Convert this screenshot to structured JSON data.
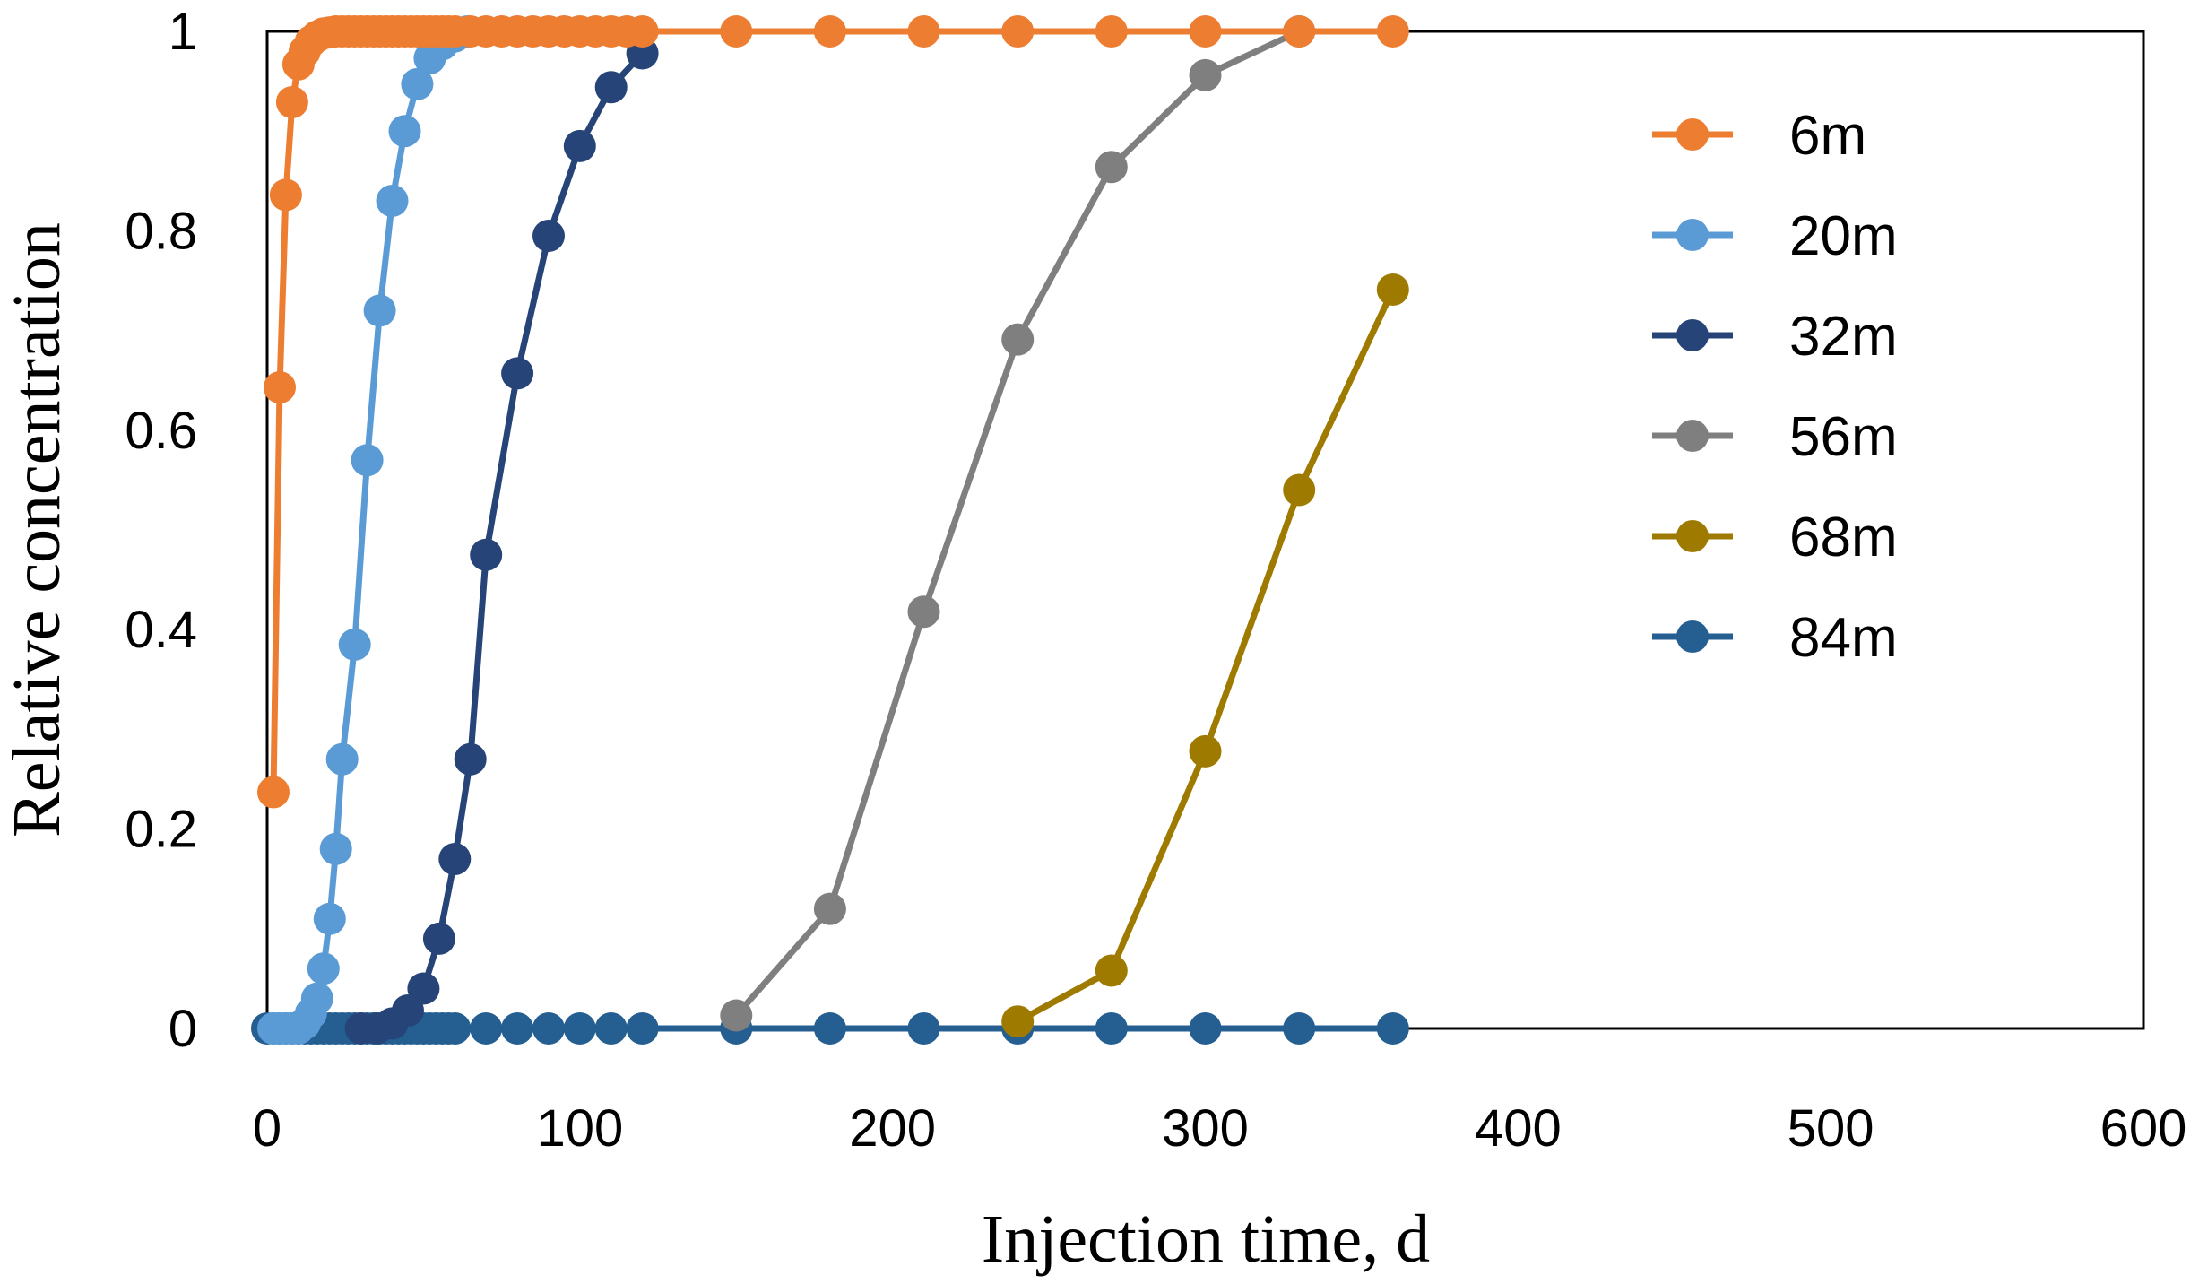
{
  "chart_data": {
    "type": "line",
    "title": "",
    "xlabel": "Injection time, d",
    "ylabel": "Relative concentration",
    "xlim": [
      0,
      600
    ],
    "ylim": [
      0,
      1
    ],
    "x_ticks": [
      0,
      100,
      200,
      300,
      400,
      500,
      600
    ],
    "y_ticks": [
      0,
      0.2,
      0.4,
      0.6,
      0.8,
      1
    ],
    "x_tick_labels": [
      "0",
      "100",
      "200",
      "300",
      "400",
      "500",
      "600"
    ],
    "y_tick_labels": [
      "0",
      "0.2",
      "0.4",
      "0.6",
      "0.8",
      "1"
    ],
    "grid": false,
    "legend_position": "right",
    "series": [
      {
        "name": "6m",
        "color": "#ED7D31",
        "x": [
          2,
          4,
          6,
          8,
          10,
          12,
          14,
          16,
          18,
          20,
          22,
          24,
          26,
          28,
          30,
          32,
          34,
          36,
          38,
          40,
          42,
          44,
          46,
          48,
          50,
          52,
          54,
          56,
          58,
          60,
          65,
          70,
          75,
          80,
          85,
          90,
          95,
          100,
          105,
          110,
          115,
          120,
          150,
          180,
          210,
          240,
          270,
          300,
          330,
          360
        ],
        "y": [
          0.237,
          0.643,
          0.836,
          0.929,
          0.967,
          0.98,
          0.99,
          0.995,
          0.998,
          0.999,
          1,
          1,
          1,
          1,
          1,
          1,
          1,
          1,
          1,
          1,
          1,
          1,
          1,
          1,
          1,
          1,
          1,
          1,
          1,
          1,
          1,
          1,
          1,
          1,
          1,
          1,
          1,
          1,
          1,
          1,
          1,
          1,
          1,
          1,
          1,
          1,
          1,
          1,
          1,
          1
        ]
      },
      {
        "name": "20m",
        "color": "#5B9BD5",
        "x": [
          2,
          4,
          6,
          8,
          10,
          12,
          14,
          16,
          18,
          20,
          22,
          24,
          28,
          32,
          36,
          40,
          44,
          48,
          52,
          56,
          60,
          64
        ],
        "y": [
          0,
          0,
          0,
          0,
          0,
          0.005,
          0.015,
          0.03,
          0.06,
          0.11,
          0.18,
          0.27,
          0.385,
          0.57,
          0.72,
          0.83,
          0.9,
          0.947,
          0.973,
          0.987,
          0.995,
          1
        ]
      },
      {
        "name": "32m",
        "color": "#264478",
        "x": [
          30,
          35,
          40,
          45,
          50,
          55,
          60,
          65,
          70,
          80,
          90,
          100,
          110,
          120
        ],
        "y": [
          0,
          0,
          0.005,
          0.018,
          0.04,
          0.09,
          0.17,
          0.27,
          0.475,
          0.657,
          0.795,
          0.885,
          0.944,
          0.978
        ]
      },
      {
        "name": "56m",
        "color": "#7F7F7F",
        "x": [
          150,
          180,
          210,
          240,
          270,
          300,
          330
        ],
        "y": [
          0.013,
          0.12,
          0.418,
          0.691,
          0.864,
          0.956,
          1
        ]
      },
      {
        "name": "68m",
        "color": "#9E7B00",
        "x": [
          240,
          270,
          300,
          330,
          360
        ],
        "y": [
          0.007,
          0.058,
          0.278,
          0.54,
          0.741
        ]
      },
      {
        "name": "84m",
        "color": "#255E91",
        "x": [
          0,
          2,
          4,
          6,
          8,
          10,
          12,
          14,
          16,
          18,
          20,
          22,
          24,
          26,
          28,
          30,
          32,
          34,
          36,
          38,
          40,
          42,
          44,
          46,
          48,
          50,
          52,
          54,
          56,
          58,
          60,
          70,
          80,
          90,
          100,
          110,
          120,
          150,
          180,
          210,
          240,
          270,
          300,
          330,
          360
        ],
        "y": [
          0,
          0,
          0,
          0,
          0,
          0,
          0,
          0,
          0,
          0,
          0,
          0,
          0,
          0,
          0,
          0,
          0,
          0,
          0,
          0,
          0,
          0,
          0,
          0,
          0,
          0,
          0,
          0,
          0,
          0,
          0,
          0,
          0,
          0,
          0,
          0,
          0,
          0,
          0,
          0,
          0,
          0,
          0,
          0,
          0
        ]
      }
    ]
  }
}
